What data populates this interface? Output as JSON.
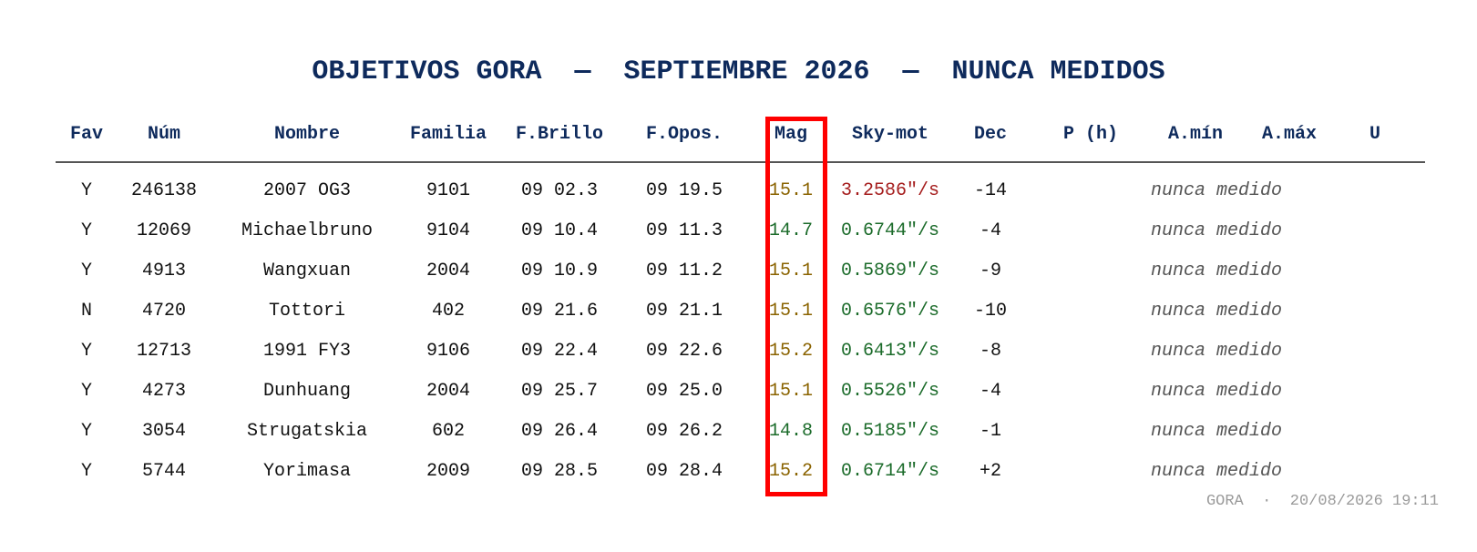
{
  "title": "OBJETIVOS GORA  —  SEPTIEMBRE 2026  —  NUNCA MEDIDOS",
  "columns": [
    "Fav",
    "Núm",
    "Nombre",
    "Familia",
    "F.Brillo",
    "F.Opos.",
    "Mag",
    "Sky-mot",
    "Dec",
    "P (h)",
    "A.mín",
    "A.máx",
    "U"
  ],
  "rows": [
    {
      "fav": "Y",
      "num": "246138",
      "nombre": "2007 OG3",
      "familia": "9101",
      "fbrillo": "09 02.3",
      "fopos": "09 19.5",
      "mag": "15.1",
      "mag_color": "amber",
      "skymot": "3.2586\"/s",
      "sky_color": "red",
      "dec": "-14",
      "note": "nunca medido"
    },
    {
      "fav": "Y",
      "num": "12069",
      "nombre": "Michaelbruno",
      "familia": "9104",
      "fbrillo": "09 10.4",
      "fopos": "09 11.3",
      "mag": "14.7",
      "mag_color": "green",
      "skymot": "0.6744\"/s",
      "sky_color": "green",
      "dec": "-4",
      "note": "nunca medido"
    },
    {
      "fav": "Y",
      "num": "4913",
      "nombre": "Wangxuan",
      "familia": "2004",
      "fbrillo": "09 10.9",
      "fopos": "09 11.2",
      "mag": "15.1",
      "mag_color": "amber",
      "skymot": "0.5869\"/s",
      "sky_color": "green",
      "dec": "-9",
      "note": "nunca medido"
    },
    {
      "fav": "N",
      "num": "4720",
      "nombre": "Tottori",
      "familia": "402",
      "fbrillo": "09 21.6",
      "fopos": "09 21.1",
      "mag": "15.1",
      "mag_color": "amber",
      "skymot": "0.6576\"/s",
      "sky_color": "green",
      "dec": "-10",
      "note": "nunca medido"
    },
    {
      "fav": "Y",
      "num": "12713",
      "nombre": "1991 FY3",
      "familia": "9106",
      "fbrillo": "09 22.4",
      "fopos": "09 22.6",
      "mag": "15.2",
      "mag_color": "amber",
      "skymot": "0.6413\"/s",
      "sky_color": "green",
      "dec": "-8",
      "note": "nunca medido"
    },
    {
      "fav": "Y",
      "num": "4273",
      "nombre": "Dunhuang",
      "familia": "2004",
      "fbrillo": "09 25.7",
      "fopos": "09 25.0",
      "mag": "15.1",
      "mag_color": "amber",
      "skymot": "0.5526\"/s",
      "sky_color": "green",
      "dec": "-4",
      "note": "nunca medido"
    },
    {
      "fav": "Y",
      "num": "3054",
      "nombre": "Strugatskia",
      "familia": "602",
      "fbrillo": "09 26.4",
      "fopos": "09 26.2",
      "mag": "14.8",
      "mag_color": "green",
      "skymot": "0.5185\"/s",
      "sky_color": "green",
      "dec": "-1",
      "note": "nunca medido"
    },
    {
      "fav": "Y",
      "num": "5744",
      "nombre": "Yorimasa",
      "familia": "2009",
      "fbrillo": "09 28.5",
      "fopos": "09 28.4",
      "mag": "15.2",
      "mag_color": "amber",
      "skymot": "0.6714\"/s",
      "sky_color": "green",
      "dec": "+2",
      "note": "nunca medido"
    }
  ],
  "footer": "GORA  ·  20/08/2026 19:11",
  "colors": {
    "header": "#0e2a5c",
    "mag_green": "#1b6b2a",
    "mag_amber": "#8a6300",
    "sky_red": "#a51c1c",
    "highlight": "#ff0000"
  }
}
